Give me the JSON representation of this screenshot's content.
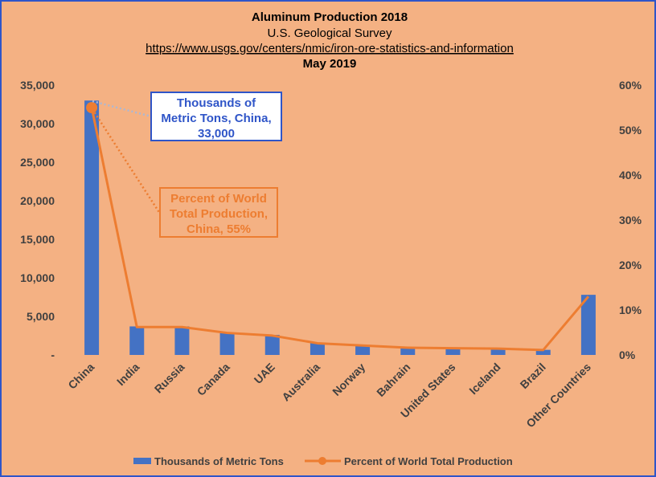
{
  "title_block": {
    "line1": "Aluminum Production 2018",
    "line2": "U.S. Geological Survey",
    "line3": "https://www.usgs.gov/centers/nmic/iron-ore-statistics-and-information",
    "line4": "May 2019"
  },
  "callouts": {
    "tons": [
      "Thousands of",
      "Metric Tons, China,",
      "33,000"
    ],
    "percent": [
      "Percent of World",
      "Total Production,",
      "China, 55%"
    ]
  },
  "colors": {
    "background": "#F4B183",
    "bar": "#4472C4",
    "line": "#ED7D31",
    "border": "#2F55C8"
  },
  "chart_data": {
    "type": "bar",
    "categories": [
      "China",
      "India",
      "Russia",
      "Canada",
      "UAE",
      "Australia",
      "Norway",
      "Bahrain",
      "United States",
      "Iceland",
      "Brazil",
      "Other Countries"
    ],
    "series": [
      {
        "name": "Thousands of Metric Tons",
        "type": "bar",
        "axis": "left",
        "values": [
          33000,
          3700,
          3700,
          2900,
          2600,
          1600,
          1300,
          1000,
          890,
          870,
          660,
          7800
        ]
      },
      {
        "name": "Percent of World Total Production",
        "type": "line",
        "axis": "right",
        "values": [
          55,
          6.2,
          6.2,
          4.9,
          4.3,
          2.6,
          2.1,
          1.6,
          1.5,
          1.4,
          1.1,
          13
        ]
      }
    ],
    "y_left": {
      "ylim": [
        0,
        35000
      ],
      "ticks": [
        0,
        5000,
        10000,
        15000,
        20000,
        25000,
        30000,
        35000
      ],
      "tick_labels": [
        "-",
        "5,000",
        "10,000",
        "15,000",
        "20,000",
        "25,000",
        "30,000",
        "35,000"
      ]
    },
    "y_right": {
      "ylim": [
        0,
        60
      ],
      "ticks": [
        0,
        10,
        20,
        30,
        40,
        50,
        60
      ],
      "tick_labels": [
        "0%",
        "10%",
        "20%",
        "30%",
        "40%",
        "50%",
        "60%"
      ]
    },
    "legend_position": "bottom",
    "grid": false
  }
}
